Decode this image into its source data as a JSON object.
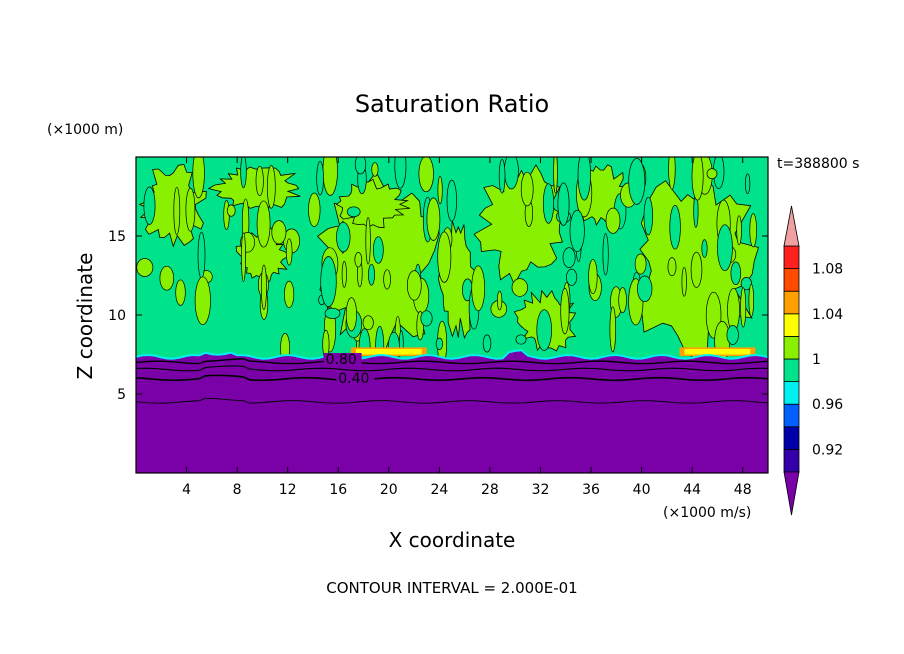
{
  "chart_data": {
    "type": "heatmap",
    "title": "Saturation Ratio",
    "xlabel": "X coordinate",
    "ylabel": "Z coordinate",
    "x_unit": "(×1000 m/s)",
    "y_unit": "(×1000 m)",
    "time_label": "t=388800 s",
    "footer": "CONTOUR INTERVAL = 2.000E-01",
    "xlim": [
      0,
      50
    ],
    "ylim": [
      0,
      20
    ],
    "x_ticks": [
      4,
      8,
      12,
      16,
      20,
      24,
      28,
      32,
      36,
      40,
      44,
      48
    ],
    "y_ticks": [
      5,
      10,
      15
    ],
    "contour_labels": [
      {
        "text": "0.80",
        "x": 15,
        "z": 6.9
      },
      {
        "text": "0.40",
        "x": 16,
        "z": 5.7
      }
    ],
    "colorbar": {
      "colors": [
        "#7a00a8",
        "#3300aa",
        "#0000aa",
        "#0060ff",
        "#00f0f0",
        "#00e38a",
        "#88f000",
        "#ffff00",
        "#ffa000",
        "#ff4a00",
        "#ff2020",
        "#f0a0a0"
      ],
      "levels": [
        0.9,
        0.92,
        0.94,
        0.96,
        0.98,
        1.0,
        1.02,
        1.04,
        1.06,
        1.08,
        1.1
      ],
      "tick_labels": [
        {
          "value": 0.92,
          "label": "0.92"
        },
        {
          "value": 0.96,
          "label": "0.96"
        },
        {
          "value": 1.0,
          "label": "1"
        },
        {
          "value": 1.04,
          "label": "1.04"
        },
        {
          "value": 1.08,
          "label": "1.08"
        }
      ]
    },
    "colors": {
      "subsaturated": "#7a00a8",
      "near_saturation": "#00e38a",
      "slightly_supersaturated": "#88f000",
      "edge": "#00f0f0",
      "peak": "#ffff00"
    }
  }
}
